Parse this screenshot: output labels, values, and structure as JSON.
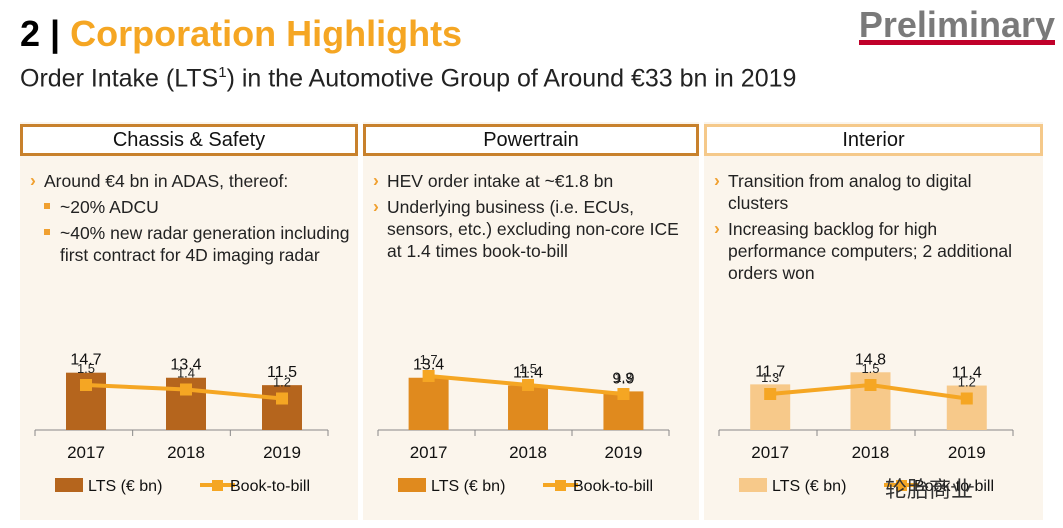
{
  "header": {
    "title_num": "2 |",
    "title_text": "Corporation Highlights",
    "subtitle_pre": "Order Intake (LTS",
    "subtitle_sup": "1",
    "subtitle_post": ") in the Automotive Group of Around €33 bn in 2019",
    "preliminary": "Preliminary"
  },
  "watermark": "轮胎商业",
  "colors": {
    "accent": "#f5a623",
    "border": "#c8812c",
    "cs_bar": "#b5651d",
    "pt_bar": "#e08a1e",
    "in_bar": "#f7c98a",
    "line": "#f5a623",
    "brand_red": "#c0002a"
  },
  "panels": [
    {
      "title": "Chassis & Safety",
      "bullets": [
        {
          "text": "Around €4 bn in ADAS, thereof:",
          "subs": [
            "~20% ADCU",
            "~40% new radar generation including first contract for 4D imaging radar"
          ]
        }
      ]
    },
    {
      "title": "Powertrain",
      "bullets": [
        {
          "text": "HEV order intake at ~€1.8 bn",
          "subs": []
        },
        {
          "text": "Underlying business (i.e. ECUs, sensors, etc.) excluding non-core ICE at 1.4 times book-to-bill",
          "subs": []
        }
      ]
    },
    {
      "title": "Interior",
      "bullets": [
        {
          "text": "Transition from analog to digital clusters",
          "subs": []
        },
        {
          "text": "Increasing backlog for high performance computers; 2 additional orders won",
          "subs": []
        }
      ]
    }
  ],
  "chart_data": [
    {
      "type": "bar",
      "categories": [
        "2017",
        "2018",
        "2019"
      ],
      "series": [
        {
          "name": "LTS (€ bn)",
          "values": [
            14.7,
            13.4,
            11.5
          ]
        },
        {
          "name": "Book-to-bill",
          "values": [
            1.5,
            1.4,
            1.2
          ]
        }
      ],
      "bar_color": "#b5651d"
    },
    {
      "type": "bar",
      "categories": [
        "2017",
        "2018",
        "2019"
      ],
      "series": [
        {
          "name": "LTS (€ bn)",
          "values": [
            13.4,
            11.4,
            9.9
          ]
        },
        {
          "name": "Book-to-bill",
          "values": [
            1.7,
            1.5,
            1.3
          ]
        }
      ],
      "bar_color": "#e08a1e"
    },
    {
      "type": "bar",
      "categories": [
        "2017",
        "2018",
        "2019"
      ],
      "series": [
        {
          "name": "LTS (€ bn)",
          "values": [
            11.7,
            14.8,
            11.4
          ]
        },
        {
          "name": "Book-to-bill",
          "values": [
            1.3,
            1.5,
            1.2
          ]
        }
      ],
      "bar_color": "#f7c98a"
    }
  ]
}
